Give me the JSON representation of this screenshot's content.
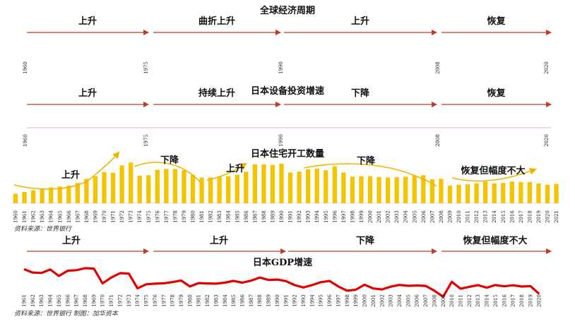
{
  "chart_data": [
    {
      "type": "timeline",
      "title": "全球经济周期",
      "axis_years": [
        "1960",
        "1975",
        "1990",
        "2008",
        "2020"
      ],
      "phases": [
        "上升",
        "曲折上升",
        "上升",
        "恢复"
      ]
    },
    {
      "type": "timeline",
      "title": "日本设备投资增速",
      "axis_years": [
        "1960",
        "1975",
        "1990",
        "2008",
        "2020"
      ],
      "phases": [
        "上升",
        "持续上升",
        "下降",
        "恢复"
      ]
    },
    {
      "type": "bar",
      "title": "日本住宅开工数量",
      "categories": [
        "1960",
        "1961",
        "1962",
        "1963",
        "1964",
        "1965",
        "1966",
        "1967",
        "1968",
        "1969",
        "1970",
        "1971",
        "1972",
        "1973",
        "1974",
        "1975",
        "1976",
        "1977",
        "1978",
        "1979",
        "1980",
        "1981",
        "1982",
        "1983",
        "1984",
        "1985",
        "1986",
        "1987",
        "1988",
        "1989",
        "1990",
        "1991",
        "1992",
        "1993",
        "1994",
        "1995",
        "1996",
        "1997",
        "1998",
        "1999",
        "2000",
        "2001",
        "2002",
        "2003",
        "2004",
        "2005",
        "2006",
        "2007",
        "2008",
        "2009",
        "2010",
        "2011",
        "2012",
        "2013",
        "2014",
        "2015",
        "2016",
        "2017",
        "2018",
        "2019",
        "2020",
        "2021"
      ],
      "values": [
        0.42,
        0.5,
        0.58,
        0.64,
        0.7,
        0.74,
        0.78,
        0.9,
        1.08,
        1.2,
        1.38,
        1.35,
        1.68,
        1.8,
        1.22,
        1.24,
        1.48,
        1.52,
        1.52,
        1.46,
        1.26,
        1.14,
        1.14,
        1.18,
        1.2,
        1.26,
        1.4,
        1.72,
        1.72,
        1.7,
        1.75,
        1.36,
        1.4,
        1.5,
        1.54,
        1.46,
        1.64,
        1.36,
        1.18,
        1.2,
        1.2,
        1.16,
        1.14,
        1.16,
        1.18,
        1.22,
        1.24,
        1.06,
        1.08,
        0.78,
        0.82,
        0.84,
        0.88,
        0.96,
        0.88,
        0.9,
        0.96,
        0.94,
        0.94,
        0.88,
        0.82,
        0.86
      ],
      "phases": [
        "上升",
        "下降",
        "上升",
        "下降",
        "恢复但幅度不大"
      ],
      "source": "资料来源：世界银行"
    },
    {
      "type": "line",
      "title": "日本GDP增速",
      "categories": [
        "1961",
        "1962",
        "1963",
        "1964",
        "1965",
        "1966",
        "1967",
        "1968",
        "1969",
        "1970",
        "1971",
        "1972",
        "1973",
        "1974",
        "1975",
        "1976",
        "1977",
        "1978",
        "1979",
        "1980",
        "1981",
        "1982",
        "1983",
        "1984",
        "1985",
        "1986",
        "1987",
        "1988",
        "1989",
        "1990",
        "1991",
        "1992",
        "1993",
        "1994",
        "1995",
        "1996",
        "1997",
        "1998",
        "1999",
        "2000",
        "2001",
        "2002",
        "2003",
        "2004",
        "2005",
        "2006",
        "2007",
        "2008",
        "2009",
        "2010",
        "2011",
        "2012",
        "2013",
        "2014",
        "2015",
        "2016",
        "2017",
        "2018",
        "2019",
        "2020"
      ],
      "values": [
        12.0,
        8.9,
        8.5,
        11.7,
        5.8,
        10.6,
        11.1,
        12.9,
        12.5,
        -1.0,
        4.4,
        8.4,
        8.0,
        -5.5,
        -1.8,
        -1.2,
        -0.9,
        0.2,
        1.6,
        -3.8,
        -0.7,
        -1.0,
        -1.2,
        -0.3,
        1.3,
        -0.3,
        1.5,
        4.4,
        2.1,
        2.5,
        1.1,
        -2.6,
        -4.7,
        -2.5,
        0.1,
        1.2,
        -3.8,
        -7.7,
        -6.8,
        -2.2,
        -5.6,
        -6.5,
        -4.0,
        -2.4,
        -3.2,
        -2.9,
        -3.3,
        -7.6,
        -13.2,
        0.5,
        -5.9,
        -4.1,
        -2.6,
        -4.9,
        -2.5,
        -3.7,
        -2.7,
        -3.9,
        -3.4,
        -10.5
      ],
      "phases": [
        "上升",
        "上升",
        "下降",
        "恢复但幅度不大"
      ],
      "source": "资料来源：世界银行   制图：加华资本"
    }
  ]
}
